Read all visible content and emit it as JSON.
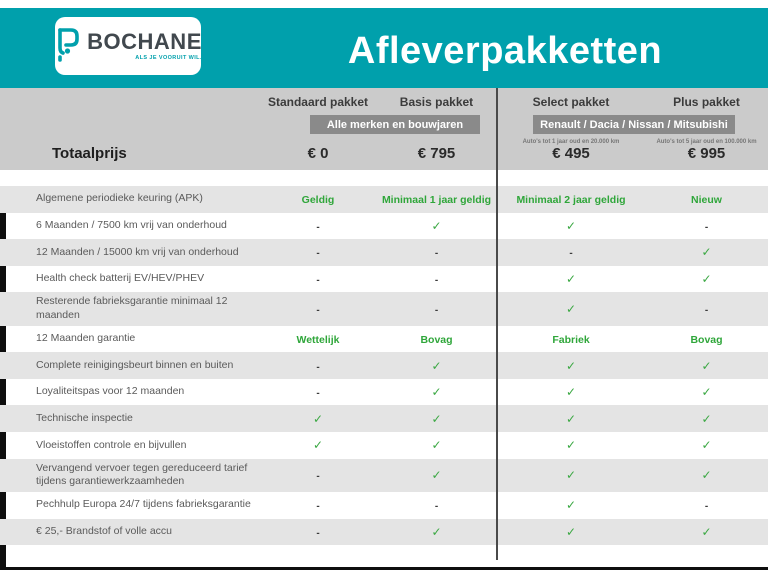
{
  "page": {
    "title": "Afleverpakketten"
  },
  "logo": {
    "brand": "BOCHANE",
    "tagline": "ALS JE VOORUIT WIL."
  },
  "pricing": {
    "total_label": "Totaalprijs",
    "bands": [
      "Alle merken en bouwjaren",
      "Renault / Dacia / Nissan / Mitsubishi"
    ],
    "columns": [
      {
        "name": "Standaard pakket",
        "subtext": "",
        "price": "€ 0"
      },
      {
        "name": "Basis pakket",
        "subtext": "",
        "price": "€ 795"
      },
      {
        "name": "Select pakket",
        "subtext": "Auto's tot 1 jaar oud en 20.000 km",
        "price": "€ 495"
      },
      {
        "name": "Plus pakket",
        "subtext": "Auto's tot 5 jaar oud en 100.000 km",
        "price": "€ 995"
      }
    ],
    "rows": [
      {
        "label": "Algemene periodieke keuring (APK)",
        "values": [
          "Geldig",
          "Minimaal 1 jaar geldig",
          "Minimaal 2 jaar geldig",
          "Nieuw"
        ]
      },
      {
        "label": "6 Maanden / 7500 km vrij van onderhoud",
        "values": [
          "-",
          "✓",
          "✓",
          "-"
        ]
      },
      {
        "label": "12 Maanden / 15000 km vrij van onderhoud",
        "values": [
          "-",
          "-",
          "-",
          "✓"
        ]
      },
      {
        "label": "Health check batterij EV/HEV/PHEV",
        "values": [
          "-",
          "-",
          "✓",
          "✓"
        ]
      },
      {
        "label": "Resterende fabrieksgarantie minimaal 12 maanden",
        "values": [
          "-",
          "-",
          "✓",
          "-"
        ]
      },
      {
        "label": "12 Maanden  garantie",
        "values": [
          "Wettelijk",
          "Bovag",
          "Fabriek",
          "Bovag"
        ]
      },
      {
        "label": "Complete reinigingsbeurt binnen en buiten",
        "values": [
          "-",
          "✓",
          "✓",
          "✓"
        ]
      },
      {
        "label": "Loyaliteitspas voor 12 maanden",
        "values": [
          "-",
          "✓",
          "✓",
          "✓"
        ]
      },
      {
        "label": "Technische inspectie",
        "values": [
          "✓",
          "✓",
          "✓",
          "✓"
        ]
      },
      {
        "label": "Vloeistoffen controle en bijvullen",
        "values": [
          "✓",
          "✓",
          "✓",
          "✓"
        ]
      },
      {
        "label": "Vervangend vervoer tegen gereduceerd tarief tijdens garantiewerkzaamheden",
        "values": [
          "-",
          "✓",
          "✓",
          "✓"
        ]
      },
      {
        "label": "Pechhulp Europa 24/7 tijdens fabrieksgarantie",
        "values": [
          "-",
          "-",
          "✓",
          "-"
        ]
      },
      {
        "label": "€ 25,- Brandstof of  volle accu",
        "values": [
          "-",
          "✓",
          "✓",
          "✓"
        ]
      }
    ]
  },
  "colors": {
    "teal": "#00A0AC",
    "band_gray": "#CBCBCB",
    "dark_band_gray": "#8A8A8A",
    "row_gray": "#E4E4E4",
    "green": "#2FA63A",
    "check_green": "#3BA843",
    "black": "#0E0E0E"
  }
}
